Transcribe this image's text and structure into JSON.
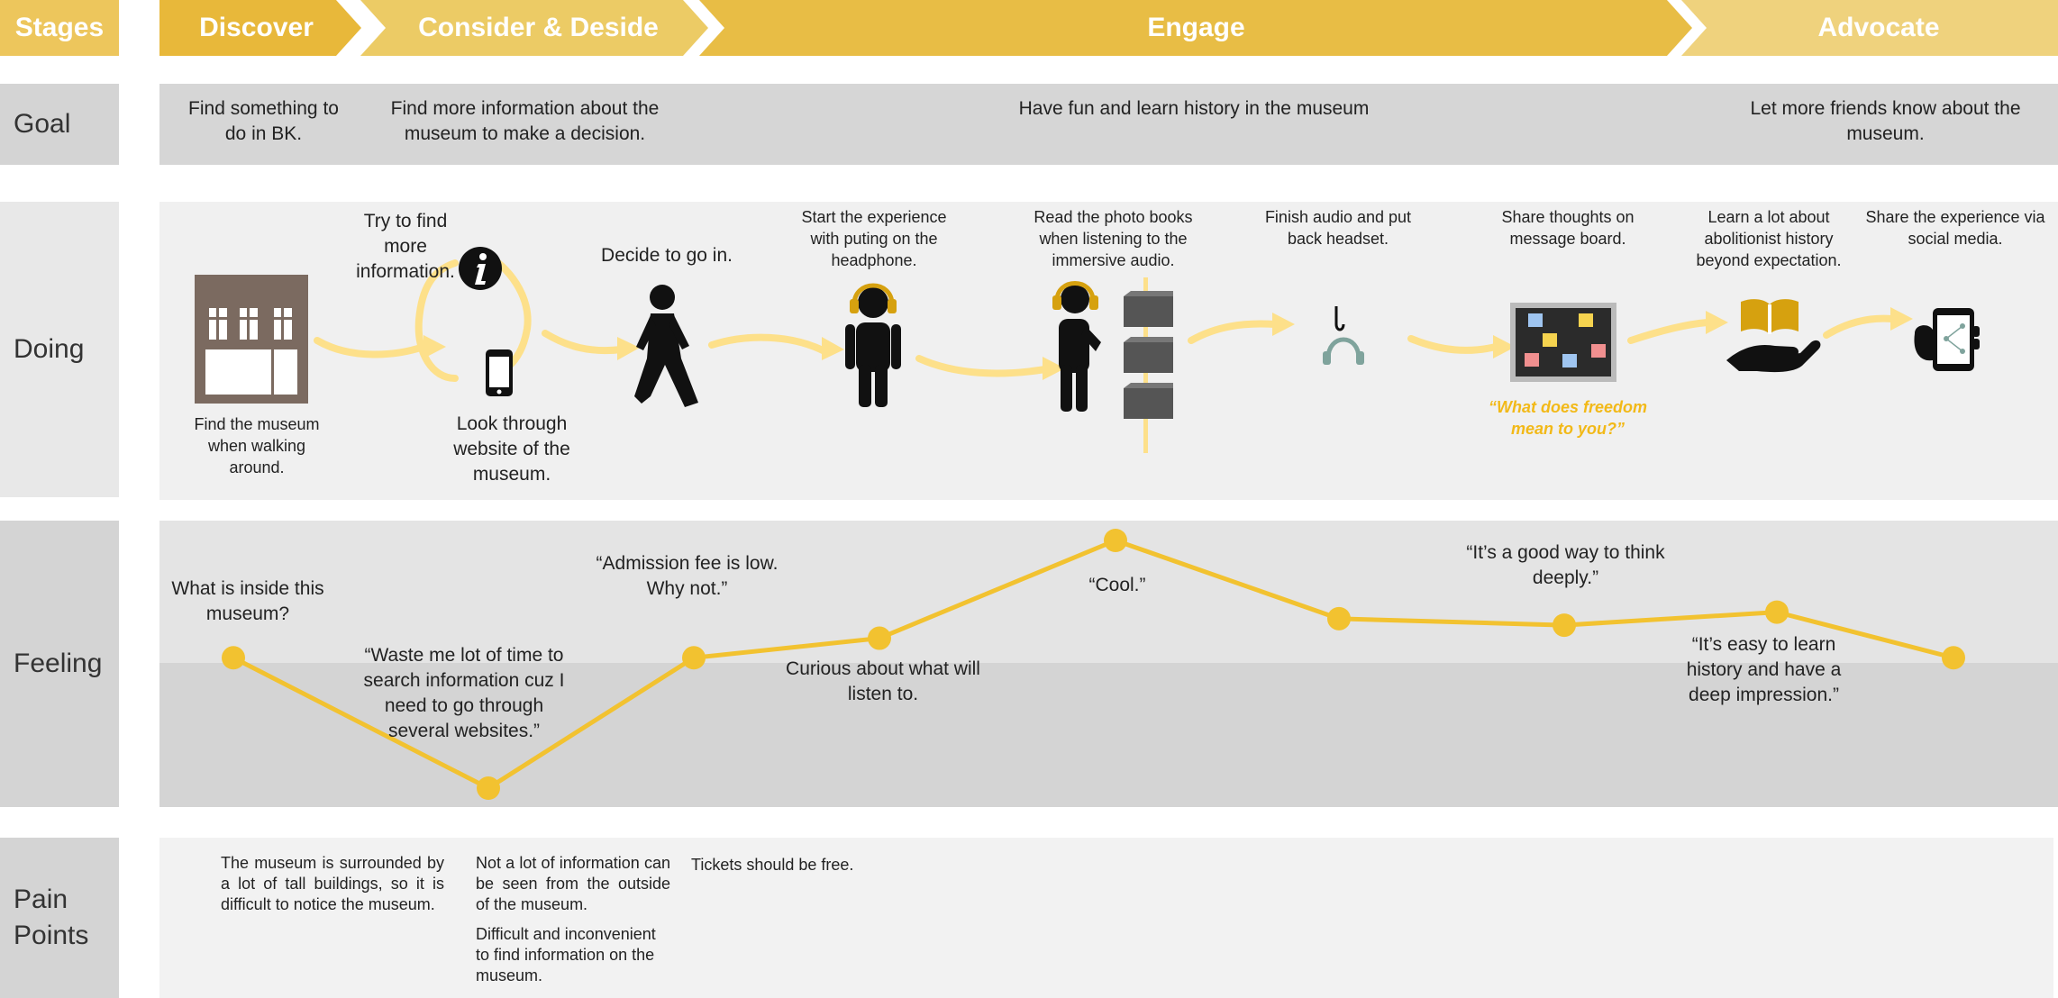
{
  "stages": {
    "header_label": "Stages",
    "items": [
      "Discover",
      "Consider & Deside",
      "Engage",
      "Advocate"
    ]
  },
  "rows": {
    "goal": "Goal",
    "doing": "Doing",
    "feeling": "Feeling",
    "pain_line1": "Pain",
    "pain_line2": "Points"
  },
  "goals": {
    "discover": "Find something to do in BK.",
    "consider": "Find more information about the museum to make a decision.",
    "engage": "Have fun and learn history in the museum",
    "advocate": "Let more friends know about the museum."
  },
  "doing": {
    "try_find": "Try to find more information.",
    "decide": "Decide to go in.",
    "start": "Start the experience with puting on the headphone.",
    "read": "Read the photo books when listening to the immersive audio.",
    "finish": "Finish audio and put back headset.",
    "share_thoughts": "Share thoughts on message board.",
    "learn": "Learn a lot about abolitionist history beyond expectation.",
    "share_exp": "Share the experience via social media.",
    "find_museum": "Find the museum when walking around.",
    "look_website": "Look through website of the museum.",
    "freedom_quote": "“What does freedom mean to you?”"
  },
  "feelings": {
    "f1": "What is inside this museum?",
    "f2": "“Waste me lot of time to search information cuz I need to go through several websites.”",
    "f3": "“Admission fee is low. Why not.”",
    "f4": "Curious about what will listen to.",
    "f5": "“Cool.”",
    "f6": "“It’s a good way to think deeply.”",
    "f7": "“It’s easy to learn history and have a deep impression.”"
  },
  "pain_points": {
    "p1": "The museum is surrounded by a lot of tall buildings, so it is difficult to notice the museum.",
    "p2a": "Not a lot of information can be seen from the outside of the museum.",
    "p2b": "Difficult and inconvenient to find information on the museum.",
    "p3": "Tickets should be free."
  },
  "icons": {
    "building": "building-icon",
    "info": "info-icon",
    "phone": "phone-icon",
    "walking": "walking-person-icon",
    "headphone_person": "person-with-headphones-icon",
    "listening_person": "listening-person-icon",
    "photo_books": "photo-books-icon",
    "headset_hook": "headset-hook-icon",
    "message_board": "message-board-icon",
    "book_hand": "book-in-hand-icon",
    "social_phone": "social-media-phone-icon"
  },
  "chart_data": {
    "type": "line",
    "series": [
      {
        "values": [
          2,
          0,
          2,
          2.3,
          3.8,
          2.6,
          2.5,
          2.7,
          2
        ]
      }
    ],
    "point_annotations": [
      "What is inside this museum?",
      "“Waste me lot of time to search information cuz I need to go through several websites.”",
      "“Admission fee is low. Why not.”",
      "Curious about what will listen to.",
      "“Cool.”",
      "",
      "“It’s a good way to think deeply.”",
      "",
      "“It’s easy to learn history and have a deep impression.”"
    ]
  },
  "colors": {
    "accent": "#f2c230",
    "stage_discover": "#e8b83a",
    "stage_consider": "#eccb65",
    "stage_engage": "#e8bd45",
    "stage_advocate": "#efd27d",
    "label_bg": "#d4d4d4",
    "doing_bg": "#f0f0f0",
    "feeling_top": "#e4e4e4",
    "feeling_bottom": "#d4d4d4",
    "arrow": "#fde08a"
  }
}
